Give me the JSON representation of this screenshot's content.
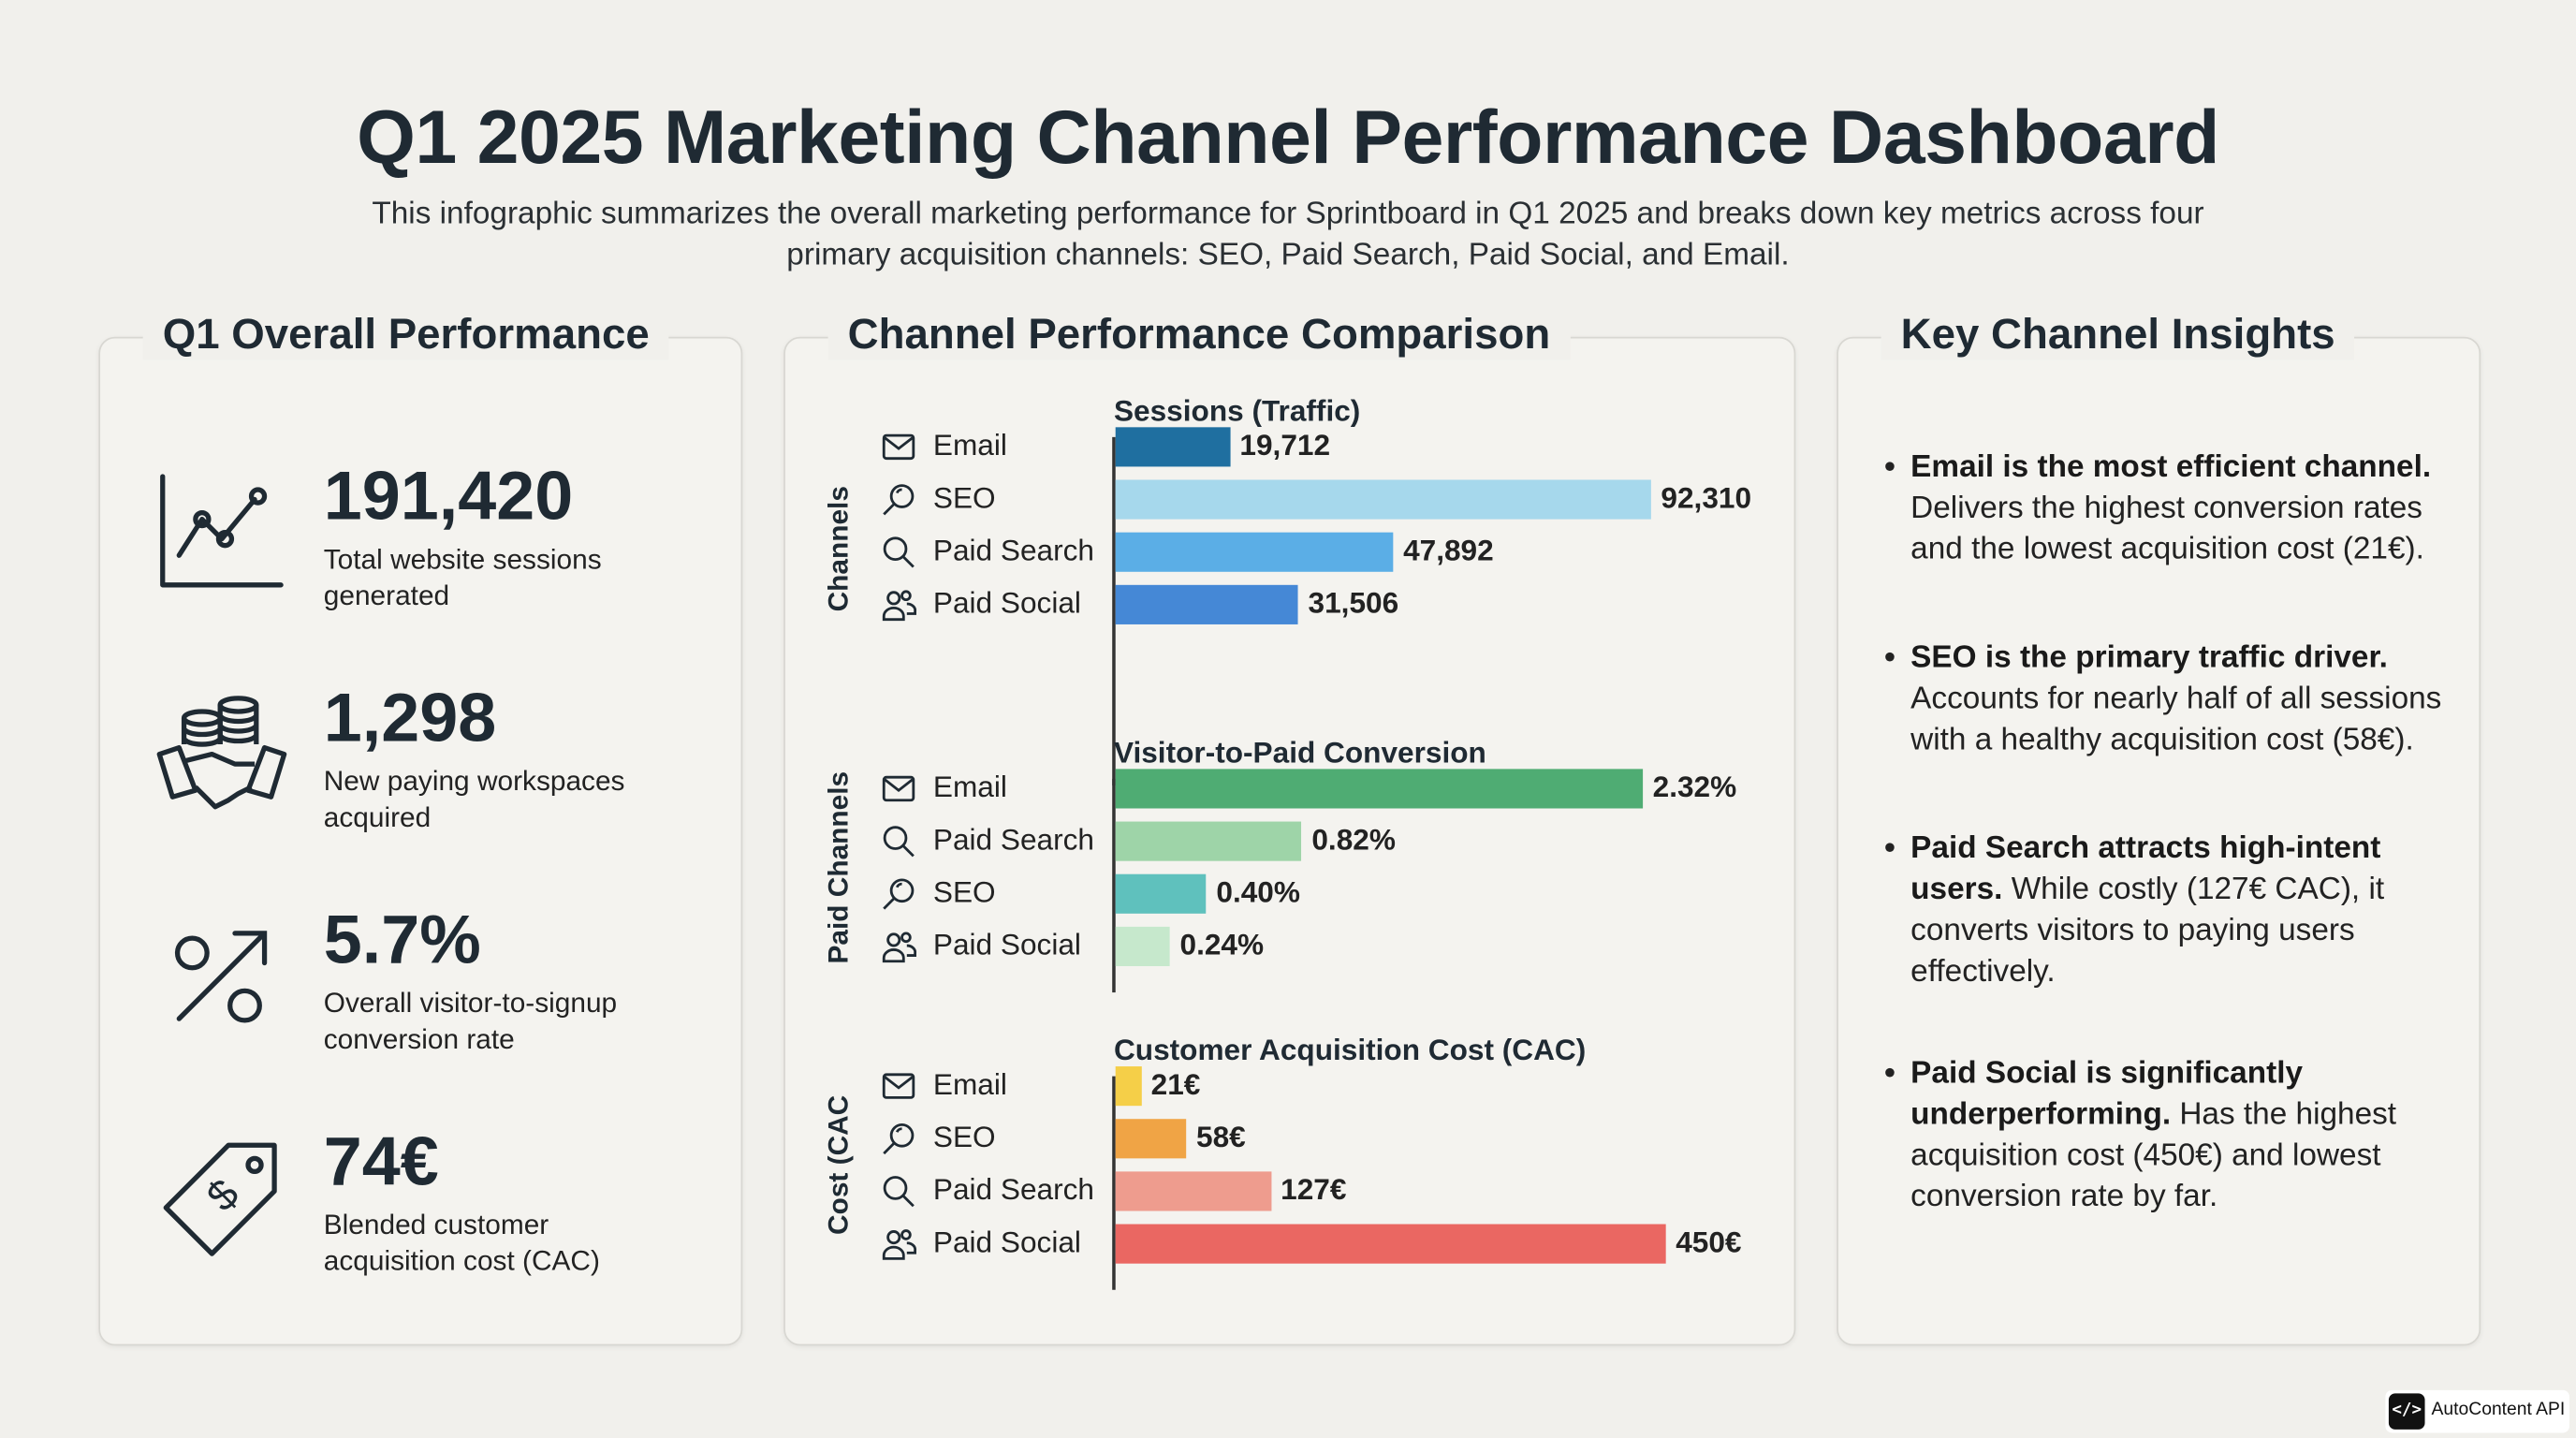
{
  "header": {
    "title": "Q1 2025 Marketing Channel Performance Dashboard",
    "subtitle": "This infographic summarizes the overall marketing performance for Sprintboard in Q1 2025 and breaks down key metrics across four primary acquisition channels: SEO, Paid Search, Paid Social, and Email."
  },
  "overall": {
    "title": "Q1 Overall Performance",
    "kpis": [
      {
        "value": "191,420",
        "label": "Total website sessions generated",
        "icon": "line-chart-icon"
      },
      {
        "value": "1,298",
        "label": "New paying workspaces acquired",
        "icon": "handshake-coins-icon"
      },
      {
        "value": "5.7%",
        "label": "Overall visitor-to-signup conversion rate",
        "icon": "percent-arrow-icon"
      },
      {
        "value": "74€",
        "label": "Blended customer acquisition cost (CAC)",
        "icon": "price-tag-icon"
      }
    ]
  },
  "comparison": {
    "title": "Channel Performance Comparison"
  },
  "chart_data": [
    {
      "type": "bar",
      "orientation": "horizontal",
      "title": "Sessions (Traffic)",
      "ylabel": "Channels",
      "categories": [
        "Email",
        "SEO",
        "Paid Search",
        "Paid Social"
      ],
      "icons": [
        "mail-icon",
        "seo-magnifier-icon",
        "search-icon",
        "users-icon"
      ],
      "values": [
        19712,
        92310,
        47892,
        31506
      ],
      "labels": [
        "19,712",
        "92,310",
        "47,892",
        "31,506"
      ],
      "colors": [
        "#1f6fa0",
        "#a6d8ec",
        "#5baee6",
        "#4588d6"
      ],
      "xlim": [
        0,
        92310
      ]
    },
    {
      "type": "bar",
      "orientation": "horizontal",
      "title": "Visitor-to-Paid Conversion",
      "ylabel": "Paid Channels",
      "categories": [
        "Email",
        "Paid Search",
        "SEO",
        "Paid Social"
      ],
      "icons": [
        "mail-icon",
        "search-icon",
        "seo-magnifier-icon",
        "users-icon"
      ],
      "values": [
        2.32,
        0.82,
        0.4,
        0.24
      ],
      "labels": [
        "2.32%",
        "0.82%",
        "0.40%",
        "0.24%"
      ],
      "colors": [
        "#4fac73",
        "#9ed4a8",
        "#5fc1bd",
        "#c6e8cc"
      ],
      "xlim": [
        0,
        2.32
      ]
    },
    {
      "type": "bar",
      "orientation": "horizontal",
      "title": "Customer Acquisition Cost (CAC)",
      "ylabel": "Cost (CAC",
      "categories": [
        "Email",
        "SEO",
        "Paid Search",
        "Paid Social"
      ],
      "icons": [
        "mail-icon",
        "seo-magnifier-icon",
        "search-icon",
        "users-icon"
      ],
      "values": [
        21,
        58,
        127,
        450
      ],
      "labels": [
        "21€",
        "58€",
        "127€",
        "450€"
      ],
      "colors": [
        "#f5cf48",
        "#f0a445",
        "#ee9c8e",
        "#ea6762"
      ],
      "xlim": [
        0,
        450
      ]
    }
  ],
  "insights": {
    "title": "Key Channel Insights",
    "items": [
      {
        "bold": "Email is the most efficient channel.",
        "text": " Delivers the highest conversion rates and the lowest acquisition cost (21€)."
      },
      {
        "bold": "SEO is the primary traffic driver.",
        "text": " Accounts for nearly half of all sessions with a healthy acquisition cost (58€)."
      },
      {
        "bold": "Paid Search attracts high-intent users.",
        "text": " While costly (127€ CAC), it converts visitors to paying users effectively."
      },
      {
        "bold": "Paid Social is significantly underperforming.",
        "text": " Has the highest acquisition cost (450€) and lowest conversion rate by far."
      }
    ]
  },
  "badge": {
    "logo": "</>",
    "label": "AutoContent API"
  }
}
